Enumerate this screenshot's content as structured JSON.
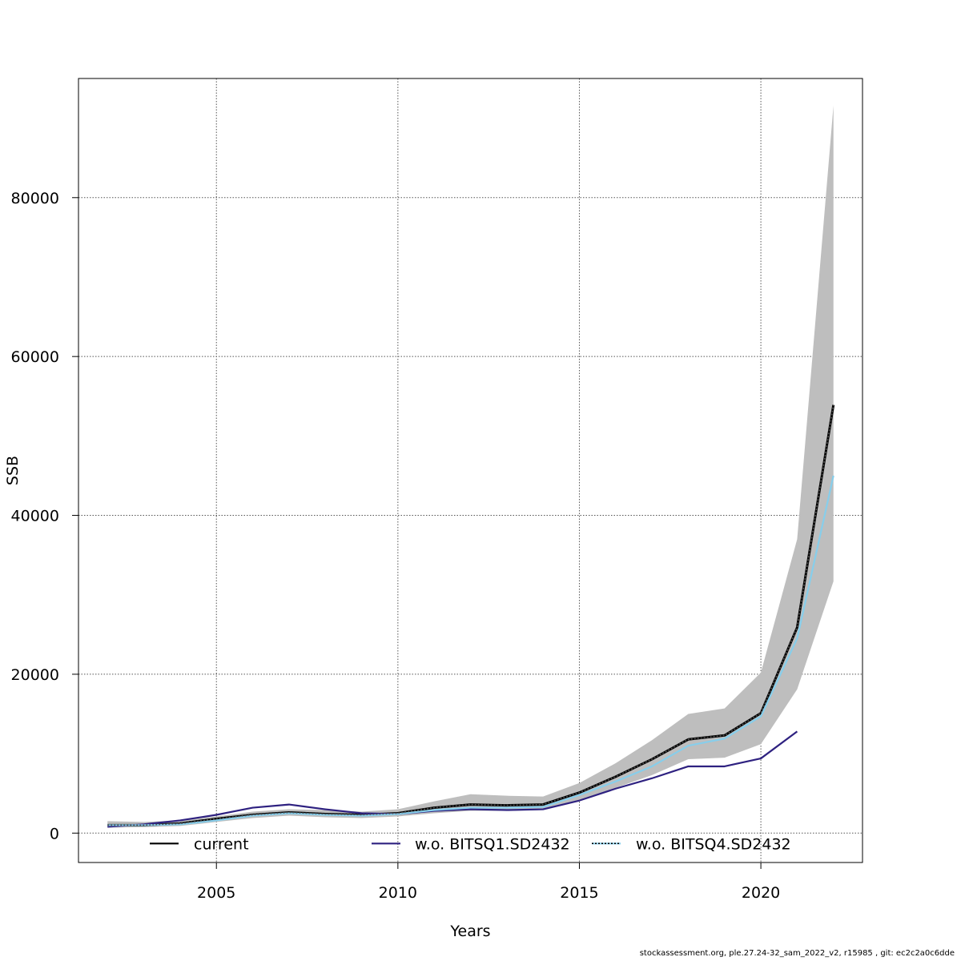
{
  "footer": "stockassessment.org, ple.27.24-32_sam_2022_v2, r15985 , git: ec2c2a0c6dde",
  "chart_data": {
    "type": "line",
    "title": "",
    "xlabel": "Years",
    "ylabel": "SSB",
    "xlim": [
      2001.2,
      2022.8
    ],
    "ylim": [
      -3700,
      95000
    ],
    "grid": true,
    "legend_position": "bottom",
    "x_ticks": [
      2005,
      2010,
      2015,
      2020
    ],
    "y_ticks": [
      0,
      20000,
      40000,
      60000,
      80000
    ],
    "x_tick_labels": [
      "2005",
      "2010",
      "2015",
      "2020"
    ],
    "y_tick_labels": [
      "0",
      "20000",
      "40000",
      "60000",
      "80000"
    ],
    "confidence_band": {
      "series": "current",
      "color": "#bebebe",
      "x": [
        2002,
        2003,
        2004,
        2005,
        2006,
        2007,
        2008,
        2009,
        2010,
        2011,
        2012,
        2013,
        2014,
        2015,
        2016,
        2017,
        2018,
        2019,
        2020,
        2021,
        2022
      ],
      "lower": [
        700,
        750,
        900,
        1400,
        1900,
        2200,
        2000,
        1900,
        2100,
        2500,
        2800,
        2800,
        2900,
        4100,
        5700,
        7300,
        9300,
        9500,
        11200,
        18100,
        31700
      ],
      "upper": [
        1500,
        1400,
        1600,
        2100,
        2700,
        3000,
        2900,
        2700,
        3000,
        4000,
        4900,
        4700,
        4600,
        6300,
        8800,
        11700,
        15000,
        15700,
        20200,
        37000,
        91600
      ]
    },
    "series": [
      {
        "name": "current",
        "color": "#000000",
        "dash": "solid",
        "x": [
          2002,
          2003,
          2004,
          2005,
          2006,
          2007,
          2008,
          2009,
          2010,
          2011,
          2012,
          2013,
          2014,
          2015,
          2016,
          2017,
          2018,
          2019,
          2020,
          2021,
          2022
        ],
        "values": [
          1000,
          1000,
          1200,
          1800,
          2300,
          2600,
          2400,
          2300,
          2500,
          3200,
          3600,
          3500,
          3600,
          5100,
          7100,
          9300,
          11800,
          12300,
          15100,
          25900,
          53900
        ]
      },
      {
        "name": "w.o. BITSQ1.SD2432",
        "color": "#2e2180",
        "dash": "solid",
        "x": [
          2002,
          2003,
          2004,
          2005,
          2006,
          2007,
          2008,
          2009,
          2010,
          2011,
          2012,
          2013,
          2014,
          2015,
          2016,
          2017,
          2018,
          2019,
          2020,
          2021
        ],
        "values": [
          800,
          1100,
          1600,
          2300,
          3200,
          3600,
          3000,
          2500,
          2400,
          2800,
          3000,
          2900,
          3000,
          4100,
          5600,
          6900,
          8400,
          8400,
          9400,
          12800
        ]
      },
      {
        "name": "w.o. BITSQ4.SD2432",
        "color": "#87ceeb",
        "dash": "solid",
        "x": [
          2002,
          2003,
          2004,
          2005,
          2006,
          2007,
          2008,
          2009,
          2010,
          2011,
          2012,
          2013,
          2014,
          2015,
          2016,
          2017,
          2018,
          2019,
          2020,
          2021,
          2022
        ],
        "values": [
          1000,
          1000,
          1100,
          1600,
          2200,
          2500,
          2300,
          2200,
          2400,
          2900,
          3200,
          3200,
          3300,
          4800,
          6500,
          8400,
          11000,
          11900,
          14700,
          24500,
          45000
        ]
      }
    ],
    "current_overlay": {
      "color": "#000000",
      "style": "dotted"
    },
    "legend": [
      {
        "label": "current",
        "color": "#000000",
        "style": "solid"
      },
      {
        "label": "w.o. BITSQ1.SD2432",
        "color": "#2e2180",
        "style": "solid"
      },
      {
        "label": "w.o. BITSQ4.SD2432",
        "color": "#87ceeb",
        "style": "dotted-over"
      }
    ]
  }
}
